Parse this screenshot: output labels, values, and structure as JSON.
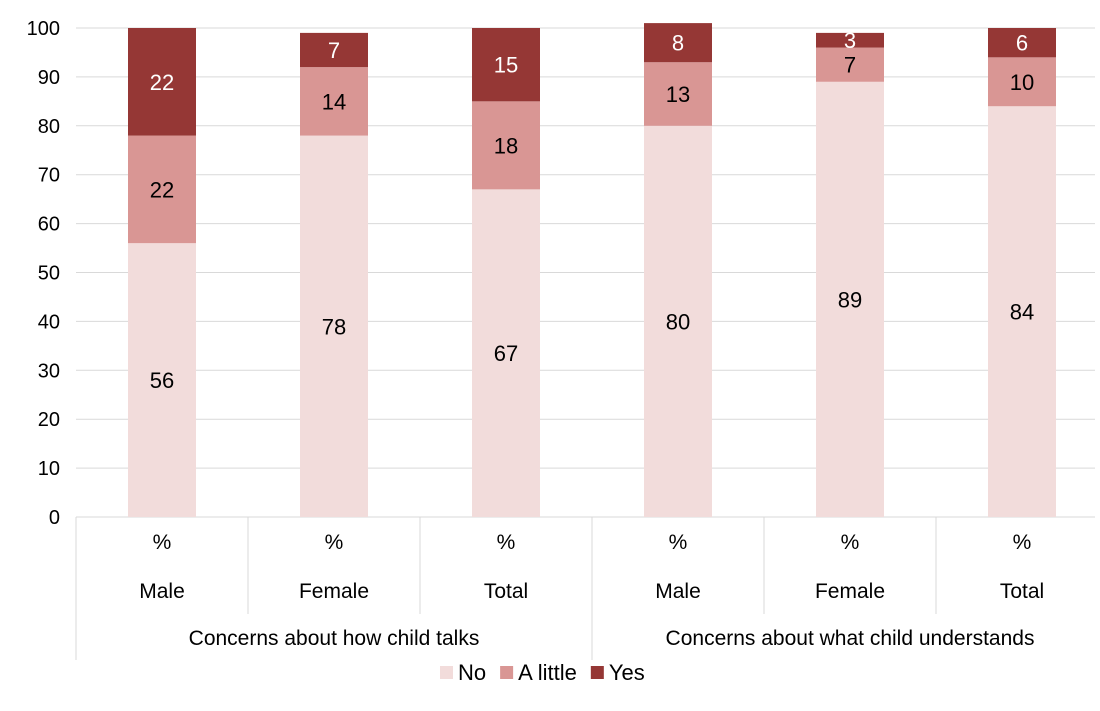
{
  "chart_data": {
    "type": "bar",
    "stacked": true,
    "ylim": [
      0,
      100
    ],
    "yticks": [
      0,
      10,
      20,
      30,
      40,
      50,
      60,
      70,
      80,
      90,
      100
    ],
    "grid": true,
    "legend_position": "bottom",
    "categories": [
      {
        "unit": "%",
        "sex": "Male",
        "group": "Concerns about how child talks"
      },
      {
        "unit": "%",
        "sex": "Female",
        "group": "Concerns about how child talks"
      },
      {
        "unit": "%",
        "sex": "Total",
        "group": "Concerns about how child talks"
      },
      {
        "unit": "%",
        "sex": "Male",
        "group": "Concerns about what child understands"
      },
      {
        "unit": "%",
        "sex": "Female",
        "group": "Concerns about what child understands"
      },
      {
        "unit": "%",
        "sex": "Total",
        "group": "Concerns about what child understands"
      }
    ],
    "groups": [
      "Concerns about how child talks",
      "Concerns about what child understands"
    ],
    "series": [
      {
        "name": "No",
        "color": "#f2dcdb",
        "label_color": "#000000",
        "values": [
          56,
          78,
          67,
          80,
          89,
          84
        ]
      },
      {
        "name": "A little",
        "color": "#d99694",
        "label_color": "#000000",
        "values": [
          22,
          14,
          18,
          13,
          7,
          10
        ]
      },
      {
        "name": "Yes",
        "color": "#953735",
        "label_color": "#ffffff",
        "values": [
          22,
          7,
          15,
          8,
          3,
          6
        ]
      }
    ]
  }
}
